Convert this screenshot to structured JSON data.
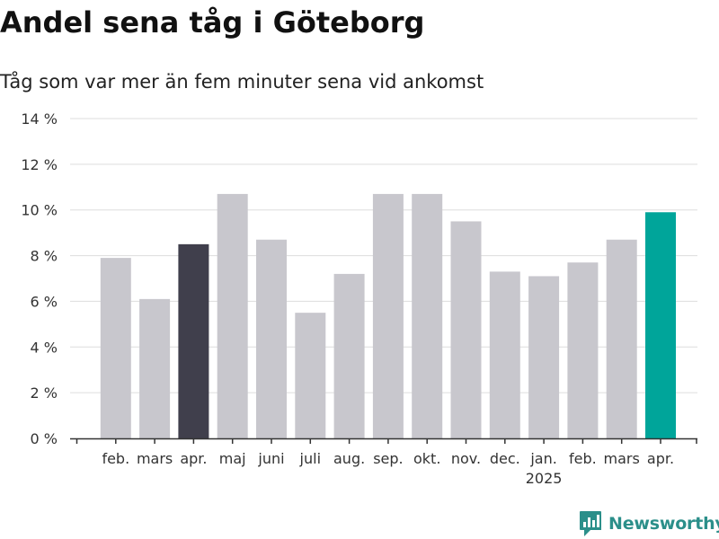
{
  "title": "Andel sena tåg i Göteborg",
  "subtitle": "Tåg som var mer än fem minuter sena vid ankomst",
  "logo_text": "Newsworthy",
  "colors": {
    "bar_default": "#c8c7cd",
    "bar_highlight_prev": "#403f4c",
    "bar_highlight_current": "#00a59a",
    "grid": "#dddddd",
    "axis": "#333333",
    "logo": "#2b8f8a"
  },
  "chart_data": {
    "type": "bar",
    "title": "Andel sena tåg i Göteborg",
    "subtitle": "Tåg som var mer än fem minuter sena vid ankomst",
    "categories": [
      "",
      "feb.",
      "mars",
      "apr.",
      "maj",
      "juni",
      "juli",
      "aug.",
      "sep.",
      "okt.",
      "nov.",
      "dec.",
      "jan.",
      "feb.",
      "mars",
      "apr."
    ],
    "year_labels": [
      {
        "index": 12,
        "label": "2025"
      }
    ],
    "values": [
      null,
      7.9,
      6.1,
      8.5,
      10.7,
      8.7,
      5.5,
      7.2,
      10.7,
      10.7,
      9.5,
      7.3,
      7.1,
      7.7,
      8.7,
      9.9
    ],
    "highlight": {
      "3": "bar_highlight_prev",
      "15": "bar_highlight_current"
    },
    "y_ticks": [
      0,
      2,
      4,
      6,
      8,
      10,
      12,
      14
    ],
    "y_tick_labels": [
      "0 %",
      "2 %",
      "4 %",
      "6 %",
      "8 %",
      "10 %",
      "12 %",
      "14 %"
    ],
    "ylim": [
      0,
      14
    ],
    "grid": true,
    "legend": "none"
  }
}
